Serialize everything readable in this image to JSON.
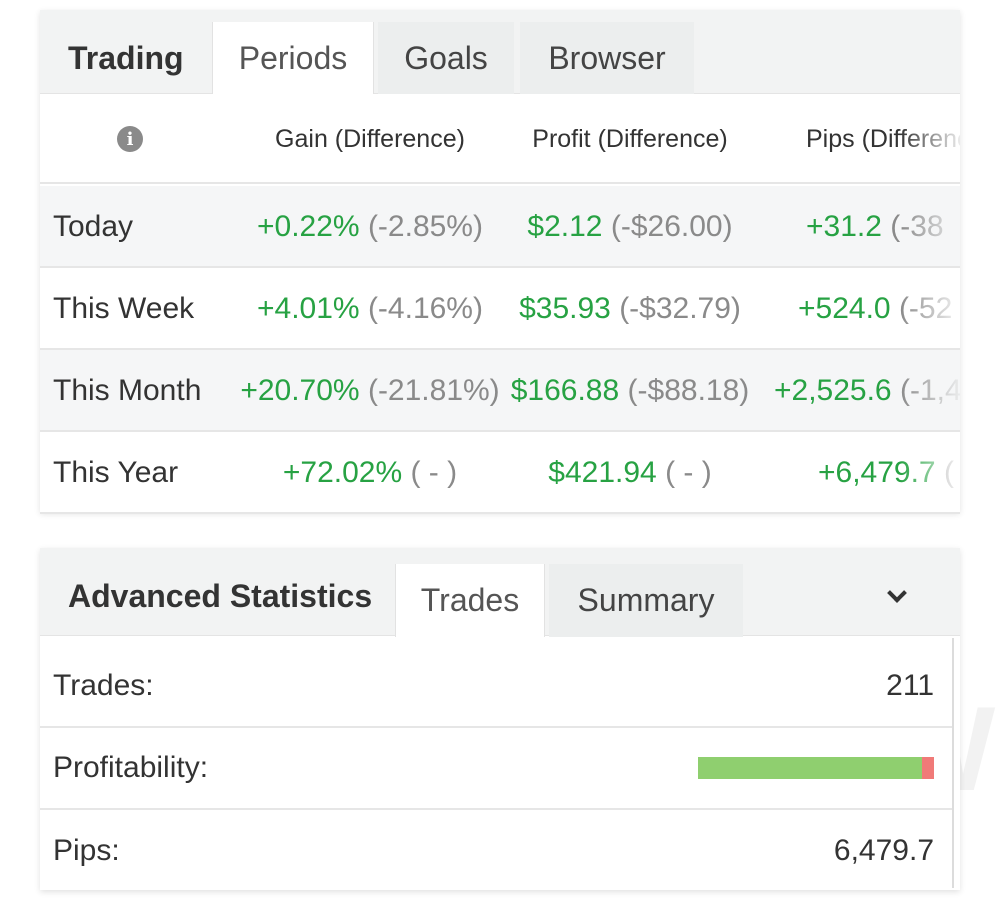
{
  "periods_panel": {
    "tabs": [
      {
        "label": "Trading",
        "type": "title"
      },
      {
        "label": "Periods",
        "type": "active"
      },
      {
        "label": "Goals",
        "type": "normal"
      },
      {
        "label": "Browser",
        "type": "normal"
      }
    ],
    "columns": {
      "gain": "Gain (Difference)",
      "profit": "Profit (Difference)",
      "pips": "Pips (Difference)"
    },
    "rows": [
      {
        "label": "Today",
        "gain": "+0.22%",
        "gain_diff": "(-2.85%)",
        "profit": "$2.12",
        "profit_diff": "(-$26.00)",
        "pips": "+31.2",
        "pips_diff": "(-38"
      },
      {
        "label": "This Week",
        "gain": "+4.01%",
        "gain_diff": "(-4.16%)",
        "profit": "$35.93",
        "profit_diff": "(-$32.79)",
        "pips": "+524.0",
        "pips_diff": "(-52"
      },
      {
        "label": "This Month",
        "gain": "+20.70%",
        "gain_diff": "(-21.81%)",
        "profit": "$166.88",
        "profit_diff": "(-$88.18)",
        "pips": "+2,525.6",
        "pips_diff": "(-1,4"
      },
      {
        "label": "This Year",
        "gain": "+72.02%",
        "gain_diff": "( - )",
        "profit": "$421.94",
        "profit_diff": "( - )",
        "pips": "+6,479.7",
        "pips_diff": "("
      }
    ]
  },
  "stats_panel": {
    "tabs": [
      {
        "label": "Advanced Statistics",
        "type": "title"
      },
      {
        "label": "Trades",
        "type": "active"
      },
      {
        "label": "Summary",
        "type": "normal"
      }
    ],
    "trades_label": "Trades:",
    "trades_value": "211",
    "profitability_label": "Profitability:",
    "profitability_win_fraction": 0.95,
    "pips_label": "Pips:",
    "pips_value": "6,479.7"
  },
  "colors": {
    "positive": "#27a243",
    "difference": "#8a8a8a",
    "bar_win": "#8fcf6f",
    "bar_loss": "#f07a78"
  },
  "icons": {
    "info": "info-icon",
    "expand": "chevron-down-icon"
  },
  "watermark": "TRADING SWAP"
}
